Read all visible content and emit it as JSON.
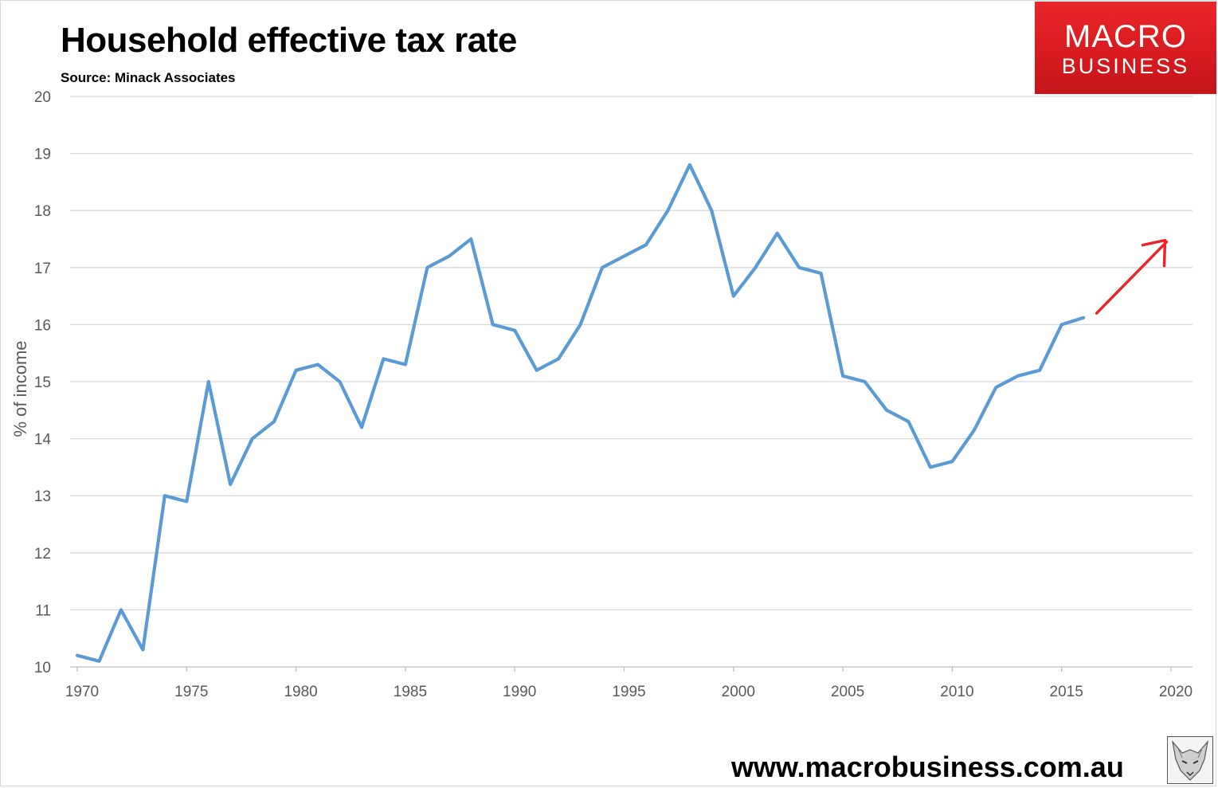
{
  "title": "Household effective tax rate",
  "subtitle": "Source: Minack Associates",
  "logo": {
    "line1": "MACRO",
    "line2": "BUSINESS",
    "color": "#d81b20"
  },
  "website": "www.macrobusiness.com.au",
  "fox_icon": "fox-head-icon",
  "chart_data": {
    "type": "line",
    "title": "Household effective tax rate",
    "subtitle": "Source: Minack Associates",
    "xlabel": "",
    "ylabel": "% of income",
    "xlim": [
      1970,
      2020
    ],
    "ylim": [
      10,
      20
    ],
    "x_ticks": [
      1970,
      1975,
      1980,
      1985,
      1990,
      1995,
      2000,
      2005,
      2010,
      2015,
      2020
    ],
    "y_ticks": [
      10,
      11,
      12,
      13,
      14,
      15,
      16,
      17,
      18,
      19,
      20
    ],
    "grid": true,
    "series": [
      {
        "color": "#5b9bd5",
        "x": [
          1970,
          1971,
          1972,
          1973,
          1974,
          1975,
          1976,
          1977,
          1978,
          1979,
          1980,
          1981,
          1982,
          1983,
          1984,
          1985,
          1986,
          1987,
          1988,
          1989,
          1990,
          1991,
          1992,
          1993,
          1994,
          1995,
          1996,
          1997,
          1998,
          1999,
          2000,
          2001,
          2002,
          2003,
          2004,
          2005,
          2006,
          2007,
          2008,
          2009,
          2010,
          2011,
          2012,
          2013,
          2014,
          2015,
          2016
        ],
        "values": [
          10.2,
          10.1,
          11.0,
          10.3,
          13.0,
          12.9,
          15.0,
          13.2,
          14.0,
          14.3,
          15.2,
          15.3,
          15.0,
          14.2,
          15.4,
          15.3,
          17.0,
          17.2,
          17.5,
          16.0,
          15.9,
          15.2,
          15.4,
          16.0,
          17.0,
          17.2,
          17.4,
          18.0,
          18.8,
          18.0,
          16.5,
          17.0,
          17.6,
          17.0,
          16.9,
          15.1,
          15.0,
          14.5,
          14.3,
          13.5,
          13.6,
          14.15,
          14.9,
          15.1,
          15.2,
          16.0,
          16.12
        ]
      }
    ],
    "annotations": [
      {
        "type": "arrow",
        "color": "#e8262a",
        "from": [
          2016.6,
          16.2
        ],
        "to": [
          2019.8,
          17.45
        ]
      }
    ]
  }
}
